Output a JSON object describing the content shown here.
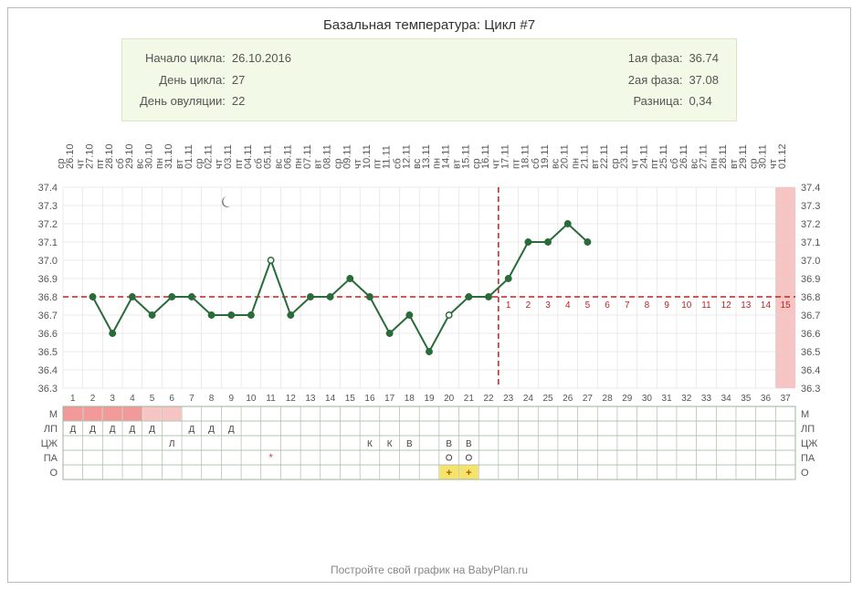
{
  "title": "Базальная температура: Цикл #7",
  "info_left": {
    "start_label": "Начало цикла:",
    "start_value": "26.10.2016",
    "day_label": "День цикла:",
    "day_value": "27",
    "ovul_label": "День овуляции:",
    "ovul_value": "22"
  },
  "info_right": {
    "phase1_label": "1ая фаза:",
    "phase1_value": "36.74",
    "phase2_label": "2ая фаза:",
    "phase2_value": "37.08",
    "diff_label": "Разница:",
    "diff_value": "0,34"
  },
  "chart": {
    "plot_bg": "#ffffff",
    "grid_color": "#d7d7d7",
    "axis_text_color": "#555555",
    "menstruation_color": "#f29a9a",
    "menstruation_light": "#f7c4c4",
    "line_color": "#2a6b3a",
    "coverline_color": "#c22020",
    "ovul_line_color": "#c22020",
    "highlight_col_color": "#f7c4c4",
    "moon_color": "#777777",
    "open_marker_fill": "#ffffff",
    "track_header_bg": "#ffffff",
    "track_grid_color": "#9db59d",
    "o_plus_bg": "#f5e36b",
    "d_text": "#444",
    "font_size_axis": 11,
    "font_size_track": 11,
    "y_min": 36.3,
    "y_max": 37.4,
    "y_step": 0.1,
    "coverline_y": 36.8,
    "n_days": 37,
    "ovulation_day": 22,
    "menstruation_days": 6,
    "highlight_last_day": 37,
    "moon_day": 9,
    "dates": [
      "26.10",
      "27.10",
      "28.10",
      "29.10",
      "30.10",
      "31.10",
      "01.11",
      "02.11",
      "03.11",
      "04.11",
      "05.11",
      "06.11",
      "07.11",
      "08.11",
      "09.11",
      "10.11",
      "11.11",
      "12.11",
      "13.11",
      "14.11",
      "15.11",
      "16.11",
      "17.11",
      "18.11",
      "19.11",
      "20.11",
      "21.11",
      "22.11",
      "23.11",
      "24.11",
      "25.11",
      "26.11",
      "27.11",
      "28.11",
      "29.11",
      "30.11",
      "01.12"
    ],
    "weekdays": [
      "ср",
      "чт",
      "пт",
      "сб",
      "вс",
      "пн",
      "вт",
      "ср",
      "чт",
      "пт",
      "сб",
      "вс",
      "пн",
      "вт",
      "ср",
      "чт",
      "пт",
      "сб",
      "вс",
      "пн",
      "вт",
      "ср",
      "чт",
      "пт",
      "сб",
      "вс",
      "пн",
      "вт",
      "ср",
      "чт",
      "пт",
      "сб",
      "вс",
      "пн",
      "вт",
      "ср",
      "чт"
    ],
    "temps": [
      null,
      36.8,
      36.6,
      36.8,
      36.7,
      36.8,
      36.8,
      36.7,
      36.7,
      36.7,
      37.0,
      36.7,
      36.8,
      36.8,
      36.9,
      36.8,
      36.6,
      36.7,
      36.5,
      36.7,
      36.8,
      36.8,
      36.9,
      37.1,
      37.1,
      37.2,
      37.1,
      null,
      null,
      null,
      null,
      null,
      null,
      null,
      null,
      null,
      null
    ],
    "open_markers": [
      11,
      20
    ],
    "luteal_numbers_start": 23,
    "luteal_numbers": [
      "1",
      "2",
      "3",
      "4",
      "5",
      "6",
      "7",
      "8",
      "9",
      "10",
      "11",
      "12",
      "13",
      "14",
      "15"
    ],
    "track_labels": [
      "М",
      "ЛП",
      "ЦЖ",
      "ПА",
      "О"
    ],
    "track_lp_days": {
      "1": "Д",
      "2": "Д",
      "3": "Д",
      "4": "Д",
      "5": "Д",
      "7": "Д",
      "8": "Д",
      "9": "Д"
    },
    "track_czh_days": {
      "6": "Л",
      "16": "К",
      "17": "К",
      "18": "В",
      "20": "В",
      "21": "В"
    },
    "track_pa_days": {
      "11": "star",
      "20": "circle",
      "21": "circle"
    },
    "track_o_days": {
      "20": "+",
      "21": "+"
    }
  },
  "footer": "Постройте свой график на BabyPlan.ru"
}
